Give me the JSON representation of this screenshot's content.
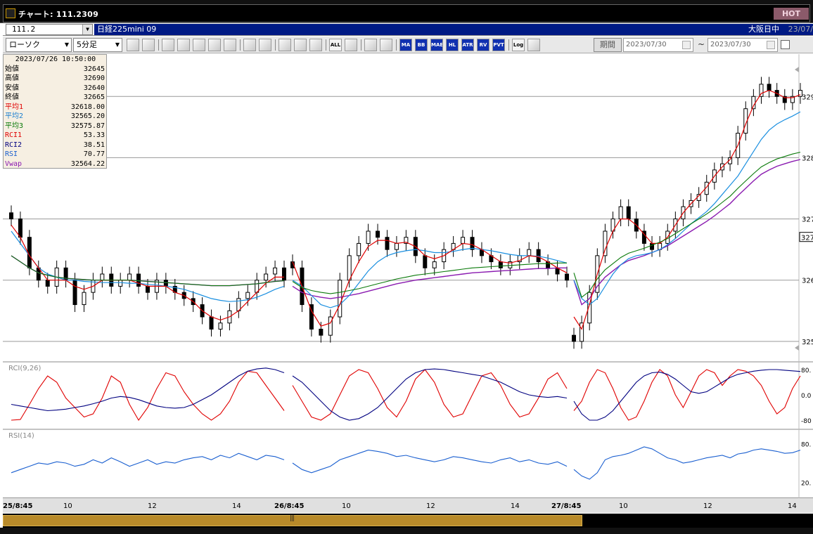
{
  "window": {
    "title": "チャート: 111.2309",
    "hot_label": "HOT"
  },
  "symbol": {
    "code": "111.2",
    "name": "日経225mini 09",
    "market": "大阪日中",
    "date": "23/07/"
  },
  "toolbar": {
    "chart_type": "ローソク",
    "interval": "5分足",
    "buttons": [
      "search",
      "line",
      "draw",
      "draw2",
      "draw3",
      "draw4",
      "abc",
      "abc2",
      "link",
      "arrow",
      "arrow2",
      "abc3",
      "ALL",
      "settings",
      "tools",
      "palette",
      "MA",
      "BB",
      "MAE",
      "HL",
      "ATR",
      "RV",
      "PVT",
      "Log",
      "options"
    ],
    "period_label": "期間",
    "date_from": "2023/07/30",
    "date_to": "2023/07/30",
    "tilde": "~"
  },
  "databox": {
    "datetime": "2023/07/26  10:50:00",
    "rows": [
      {
        "label": "始値",
        "value": "32645",
        "color": "#000000"
      },
      {
        "label": "高値",
        "value": "32690",
        "color": "#000000"
      },
      {
        "label": "安値",
        "value": "32640",
        "color": "#000000"
      },
      {
        "label": "終値",
        "value": "32665",
        "color": "#000000"
      },
      {
        "label": "平均1",
        "value": "32618.00",
        "color": "#e00000"
      },
      {
        "label": "平均2",
        "value": "32565.20",
        "color": "#1a7fd0"
      },
      {
        "label": "平均3",
        "value": "32575.87",
        "color": "#0a7a0a"
      },
      {
        "label": "RCI1",
        "value": "53.33",
        "color": "#e00000"
      },
      {
        "label": "RCI2",
        "value": "38.51",
        "color": "#000080"
      },
      {
        "label": "RSI",
        "value": "70.77",
        "color": "#1a5fd0"
      },
      {
        "label": "Vwap",
        "value": "32564.22",
        "color": "#8a1ab0"
      }
    ]
  },
  "price_axis": {
    "labels": [
      "329",
      "328",
      "327",
      "326",
      "325"
    ],
    "current": "327"
  },
  "rci_panel": {
    "label": "RCI(9,26)",
    "axis": [
      "80.",
      "0.0",
      "-80"
    ]
  },
  "rsi_panel": {
    "label": "RSI(14)",
    "axis": [
      "80.",
      "20."
    ]
  },
  "time_axis": [
    "25/8:45",
    "10",
    "12",
    "14",
    "26/8:45",
    "10",
    "12",
    "14",
    "27/8:45",
    "10",
    "12",
    "14"
  ],
  "colors": {
    "ma1": "#e00000",
    "ma2": "#1a8fe0",
    "ma3": "#0a7a0a",
    "vwap": "#8a1ab0",
    "rci1": "#e00000",
    "rci2": "#000080",
    "rsi": "#1a5fd0",
    "candle": "#000000"
  },
  "chart_data": {
    "type": "line",
    "price_levels": [
      32900,
      32800,
      32700,
      32600,
      32500
    ],
    "sessions": [
      {
        "name": "25",
        "close": [
          32700,
          32670,
          32620,
          32600,
          32590,
          32620,
          32600,
          32560,
          32580,
          32600,
          32610,
          32590,
          32600,
          32610,
          32590,
          32580,
          32600,
          32590,
          32580,
          32570,
          32560,
          32540,
          32520,
          32530,
          32550,
          32570,
          32580,
          32600,
          32610,
          32620,
          32600
        ],
        "ma1": [
          32690,
          32670,
          32640,
          32620,
          32600,
          32600,
          32600,
          32590,
          32585,
          32590,
          32600,
          32600,
          32600,
          32600,
          32595,
          32590,
          32590,
          32590,
          32580,
          32575,
          32565,
          32550,
          32540,
          32535,
          32540,
          32550,
          32565,
          32580,
          32595,
          32605,
          32605
        ],
        "ma2": [
          32680,
          32660,
          32640,
          32620,
          32610,
          32605,
          32600,
          32600,
          32598,
          32597,
          32596,
          32596,
          32596,
          32595,
          32595,
          32593,
          32592,
          32590,
          32588,
          32585,
          32580,
          32575,
          32570,
          32567,
          32565,
          32566,
          32568,
          32572,
          32578,
          32585,
          32590
        ],
        "vwap": [
          32640,
          32630,
          32620,
          32612,
          32608,
          32605,
          32603,
          32602,
          32601,
          32600,
          32600,
          32600,
          32600,
          32600,
          32599,
          32598,
          32597,
          32596,
          32595,
          32594,
          32593,
          32592,
          32591,
          32591,
          32591,
          32592,
          32593,
          32594,
          32596,
          32598,
          32599
        ],
        "rci1": [
          -80,
          -78,
          -30,
          20,
          60,
          40,
          -10,
          -40,
          -70,
          -60,
          -10,
          60,
          40,
          -30,
          -80,
          -40,
          20,
          70,
          60,
          10,
          -30,
          -60,
          -80,
          -60,
          -20,
          40,
          75,
          70,
          30,
          -10,
          -50
        ],
        "rci2": [
          -30,
          -35,
          -40,
          -45,
          -50,
          -48,
          -45,
          -40,
          -35,
          -28,
          -20,
          -10,
          -5,
          -8,
          -15,
          -25,
          -35,
          -40,
          -42,
          -40,
          -30,
          -15,
          0,
          20,
          40,
          60,
          75,
          82,
          85,
          80,
          70
        ],
        "rsi": [
          35,
          40,
          45,
          50,
          48,
          52,
          50,
          45,
          48,
          55,
          50,
          58,
          52,
          45,
          50,
          55,
          48,
          52,
          50,
          55,
          58,
          60,
          55,
          62,
          58,
          65,
          60,
          55,
          62,
          60,
          55
        ]
      },
      {
        "name": "26",
        "close": [
          32620,
          32560,
          32520,
          32510,
          32540,
          32600,
          32640,
          32660,
          32680,
          32670,
          32650,
          32660,
          32670,
          32640,
          32620,
          32630,
          32650,
          32660,
          32670,
          32650,
          32640,
          32630,
          32620,
          32630,
          32640,
          32650,
          32630,
          32620,
          32610,
          32600
        ],
        "ma1": [
          32630,
          32590,
          32550,
          32525,
          32530,
          32560,
          32600,
          32630,
          32655,
          32665,
          32665,
          32660,
          32662,
          32655,
          32640,
          32635,
          32640,
          32650,
          32660,
          32658,
          32650,
          32640,
          32630,
          32628,
          32632,
          32640,
          32638,
          32630,
          32620,
          32612
        ],
        "ma2": [
          32600,
          32590,
          32575,
          32560,
          32555,
          32560,
          32575,
          32595,
          32615,
          32630,
          32640,
          32645,
          32648,
          32650,
          32648,
          32645,
          32645,
          32647,
          32650,
          32652,
          32650,
          32648,
          32645,
          32642,
          32640,
          32640,
          32639,
          32636,
          32632,
          32628
        ],
        "vwap": [
          32590,
          32580,
          32575,
          32572,
          32570,
          32572,
          32575,
          32578,
          32582,
          32586,
          32590,
          32594,
          32597,
          32600,
          32602,
          32604,
          32606,
          32608,
          32610,
          32612,
          32613,
          32614,
          32615,
          32616,
          32617,
          32618,
          32619,
          32619,
          32620,
          32620
        ],
        "rci1": [
          30,
          -20,
          -70,
          -80,
          -60,
          0,
          60,
          80,
          70,
          20,
          -40,
          -70,
          -20,
          50,
          80,
          40,
          -30,
          -70,
          -60,
          0,
          60,
          70,
          30,
          -30,
          -70,
          -60,
          -10,
          50,
          70,
          20
        ],
        "rci2": [
          60,
          40,
          10,
          -20,
          -50,
          -70,
          -80,
          -75,
          -60,
          -40,
          -10,
          20,
          50,
          70,
          80,
          82,
          80,
          75,
          70,
          65,
          60,
          50,
          40,
          25,
          10,
          0,
          -5,
          -8,
          -5,
          -10
        ],
        "rsi": [
          50,
          40,
          35,
          40,
          45,
          55,
          60,
          65,
          70,
          68,
          65,
          60,
          62,
          58,
          55,
          52,
          55,
          60,
          58,
          55,
          52,
          50,
          55,
          58,
          52,
          55,
          50,
          48,
          52,
          45
        ]
      },
      {
        "name": "27",
        "close": [
          32500,
          32530,
          32580,
          32640,
          32680,
          32700,
          32720,
          32700,
          32680,
          32660,
          32650,
          32660,
          32680,
          32700,
          32720,
          32730,
          32740,
          32760,
          32780,
          32790,
          32800,
          32840,
          32880,
          32900,
          32920,
          32910,
          32900,
          32890,
          32900,
          32910
        ],
        "ma1": [
          32540,
          32520,
          32560,
          32610,
          32650,
          32680,
          32700,
          32700,
          32690,
          32675,
          32660,
          32660,
          32670,
          32690,
          32710,
          32725,
          32738,
          32752,
          32770,
          32785,
          32797,
          32820,
          32855,
          32885,
          32905,
          32910,
          32905,
          32898,
          32898,
          32903
        ],
        "ma2": [
          32600,
          32570,
          32560,
          32570,
          32590,
          32610,
          32625,
          32635,
          32640,
          32642,
          32645,
          32650,
          32658,
          32668,
          32680,
          32692,
          32702,
          32712,
          32725,
          32740,
          32755,
          32770,
          32790,
          32810,
          32830,
          32845,
          32855,
          32862,
          32868,
          32875
        ],
        "vwap": [
          32600,
          32560,
          32570,
          32590,
          32605,
          32615,
          32625,
          32632,
          32636,
          32640,
          32645,
          32650,
          32656,
          32664,
          32672,
          32680,
          32688,
          32696,
          32705,
          32715,
          32725,
          32738,
          32750,
          32762,
          32773,
          32780,
          32786,
          32790,
          32794,
          32797
        ],
        "rci1": [
          -50,
          -20,
          40,
          80,
          70,
          20,
          -40,
          -80,
          -70,
          -20,
          40,
          80,
          60,
          0,
          -40,
          10,
          60,
          80,
          70,
          30,
          60,
          80,
          75,
          60,
          30,
          -20,
          -60,
          -40,
          20,
          60
        ],
        "rci2": [
          -20,
          -60,
          -80,
          -80,
          -70,
          -50,
          -20,
          10,
          40,
          60,
          70,
          72,
          65,
          50,
          30,
          10,
          5,
          10,
          25,
          40,
          55,
          65,
          70,
          75,
          78,
          80,
          80,
          78,
          76,
          74
        ],
        "rsi": [
          40,
          30,
          25,
          35,
          55,
          60,
          62,
          65,
          70,
          75,
          72,
          65,
          58,
          55,
          50,
          52,
          55,
          58,
          60,
          62,
          58,
          64,
          66,
          70,
          72,
          70,
          68,
          65,
          66,
          70
        ]
      }
    ],
    "rci_range": [
      -100,
      100
    ],
    "rsi_range": [
      0,
      100
    ]
  }
}
